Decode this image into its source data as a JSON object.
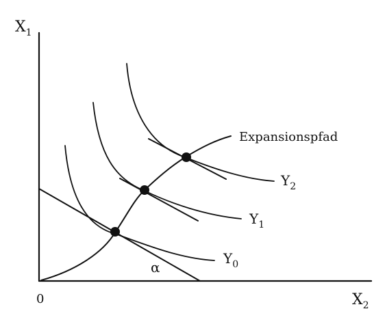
{
  "axes": {
    "y_label": "X",
    "y_label_sub": "1",
    "x_label": "X",
    "x_label_sub": "2",
    "origin_label": "0"
  },
  "curves": {
    "y0_label": "Y",
    "y0_sub": "0",
    "y1_label": "Y",
    "y1_sub": "1",
    "y2_label": "Y",
    "y2_sub": "2"
  },
  "expansion_path_label": "Expansionspfad",
  "angle_label": "α"
}
